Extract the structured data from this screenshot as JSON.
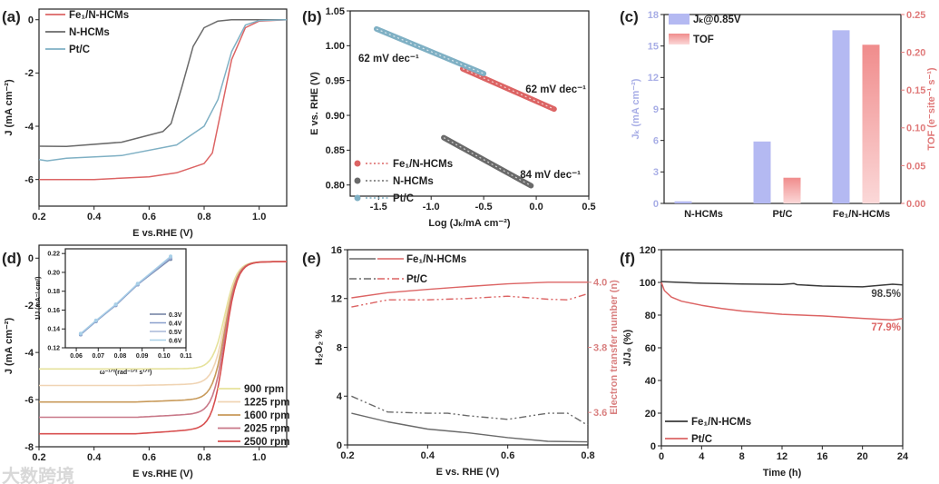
{
  "colors": {
    "fe": "#dc6464",
    "nhcm": "#6a6a6a",
    "ptc": "#7fb0c4",
    "jk": "#b4b9f2",
    "tof": "#f08c8c",
    "right_axis_e": "#d98080",
    "axis": "#222222"
  },
  "watermark": "大数跨境",
  "chart_data": [
    {
      "id": "a",
      "type": "line",
      "panel_label": "(a)",
      "xlabel": "E vs.RHE (V)",
      "ylabel": "J (mA cm⁻²)",
      "xlim": [
        0.2,
        1.1
      ],
      "ylim": [
        -7,
        0.4
      ],
      "xticks": [
        0.2,
        0.4,
        0.6,
        0.8,
        1.0
      ],
      "xtick_labels": [
        "0.2",
        "0.4",
        "0.6",
        "0.8",
        "1.0"
      ],
      "yticks": [
        0,
        -2,
        -4,
        -6
      ],
      "ytick_labels": [
        "0",
        "-2",
        "-4",
        "-6"
      ],
      "series": [
        {
          "name": "Fe₁/N-HCMs",
          "color": "#dc6464",
          "points": [
            [
              0.2,
              -6.0
            ],
            [
              0.4,
              -6.0
            ],
            [
              0.6,
              -5.9
            ],
            [
              0.7,
              -5.75
            ],
            [
              0.8,
              -5.4
            ],
            [
              0.83,
              -5.0
            ],
            [
              0.86,
              -3.5
            ],
            [
              0.9,
              -1.5
            ],
            [
              0.95,
              -0.3
            ],
            [
              1.0,
              -0.05
            ],
            [
              1.1,
              0
            ]
          ]
        },
        {
          "name": "N-HCMs",
          "color": "#6a6a6a",
          "points": [
            [
              0.2,
              -4.75
            ],
            [
              0.3,
              -4.76
            ],
            [
              0.5,
              -4.6
            ],
            [
              0.65,
              -4.2
            ],
            [
              0.68,
              -3.9
            ],
            [
              0.72,
              -2.5
            ],
            [
              0.76,
              -1.0
            ],
            [
              0.8,
              -0.3
            ],
            [
              0.85,
              -0.05
            ],
            [
              0.9,
              0
            ],
            [
              1.1,
              0
            ]
          ]
        },
        {
          "name": "Pt/C",
          "color": "#7fb0c4",
          "points": [
            [
              0.2,
              -5.25
            ],
            [
              0.23,
              -5.3
            ],
            [
              0.3,
              -5.2
            ],
            [
              0.5,
              -5.1
            ],
            [
              0.7,
              -4.7
            ],
            [
              0.8,
              -4.0
            ],
            [
              0.85,
              -3.0
            ],
            [
              0.9,
              -1.2
            ],
            [
              0.95,
              -0.2
            ],
            [
              1.0,
              -0.03
            ],
            [
              1.1,
              0
            ]
          ]
        }
      ]
    },
    {
      "id": "b",
      "type": "scatter",
      "panel_label": "(b)",
      "xlabel": "Log (Jₖ/mA cm⁻²)",
      "ylabel": "E vs. RHE (V)",
      "xlim": [
        -1.77,
        0.5
      ],
      "ylim": [
        0.784,
        1.05
      ],
      "xticks": [
        -1.5,
        -1.0,
        -0.5,
        0.0,
        0.5
      ],
      "xtick_labels": [
        "-1.5",
        "-1.0",
        "-0.5",
        "0.0",
        "0.5"
      ],
      "yticks": [
        0.8,
        0.85,
        0.9,
        0.95,
        1.0,
        1.05
      ],
      "ytick_labels": [
        "0.80",
        "0.85",
        "0.90",
        "0.95",
        "1.00",
        "1.05"
      ],
      "series": [
        {
          "name": "Fe₁/N-HCMs",
          "color": "#dc6464",
          "points": [
            [
              -0.7,
              0.967
            ],
            [
              0.17,
              0.909
            ]
          ]
        },
        {
          "name": "N-HCMs",
          "color": "#6a6a6a",
          "points": [
            [
              -0.88,
              0.868
            ],
            [
              -0.05,
              0.799
            ]
          ]
        },
        {
          "name": "Pt/C",
          "color": "#7fb0c4",
          "points": [
            [
              -1.52,
              1.024
            ],
            [
              -0.5,
              0.96
            ]
          ]
        }
      ],
      "annotations": [
        "62 mV dec⁻¹",
        "62 mV dec⁻¹",
        "84 mV dec⁻¹"
      ]
    },
    {
      "id": "c",
      "type": "bar",
      "panel_label": "(c)",
      "categories": [
        "N-HCMs",
        "Pt/C",
        "Fe₁/N-HCMs"
      ],
      "ylabel": "Jₖ (mA cm⁻²)",
      "y2label": "TOF (e⁻site⁻¹ s⁻¹)",
      "ylim": [
        0,
        18
      ],
      "y2lim": [
        0,
        0.25
      ],
      "yticks": [
        0,
        3,
        6,
        9,
        12,
        15,
        18
      ],
      "ytick_labels": [
        "0",
        "3",
        "6",
        "9",
        "12",
        "15",
        "18"
      ],
      "y2ticks": [
        0,
        0.05,
        0.1,
        0.15,
        0.2,
        0.25
      ],
      "y2tick_labels": [
        "0.00",
        "0.05",
        "0.10",
        "0.15",
        "0.20",
        "0.25"
      ],
      "series": [
        {
          "name": "Jₖ@0.85V",
          "color": "#b4b9f2",
          "axis": "y",
          "values": [
            0.2,
            5.9,
            16.5
          ]
        },
        {
          "name": "TOF",
          "color": "#f08c8c",
          "axis": "y2",
          "values": [
            0,
            0.034,
            0.21
          ]
        }
      ]
    },
    {
      "id": "d",
      "type": "line",
      "panel_label": "(d)",
      "xlabel": "E vs.RHE (V)",
      "ylabel": "J (mA cm⁻²)",
      "xlim": [
        0.2,
        1.1
      ],
      "ylim": [
        -8,
        0.55
      ],
      "xticks": [
        0.2,
        0.4,
        0.6,
        0.8,
        1.0
      ],
      "xtick_labels": [
        "0.2",
        "0.4",
        "0.6",
        "0.8",
        "1.0"
      ],
      "yticks": [
        0,
        -2,
        -4,
        -6,
        -8
      ],
      "ytick_labels": [
        "0",
        "-2",
        "-4",
        "-6",
        "-8"
      ],
      "series": [
        {
          "name": "900 rpm",
          "color": "#e6e29c",
          "limit": -4.7
        },
        {
          "name": "1225 rpm",
          "color": "#f0d4b4",
          "limit": -5.4
        },
        {
          "name": "1600 rpm",
          "color": "#c89a5a",
          "limit": -6.1
        },
        {
          "name": "2025 rpm",
          "color": "#c87888",
          "limit": -6.75
        },
        {
          "name": "2500 rpm",
          "color": "#d85050",
          "limit": -7.45
        }
      ],
      "inset": {
        "xlabel": "ω⁻¹ᐟ²(rad⁻¹ᐟ² s¹ᐟ²)",
        "ylabel": "1/J (mA⁻¹ cm²)",
        "xlim": [
          0.055,
          0.11
        ],
        "ylim": [
          0.12,
          0.225
        ],
        "xticks": [
          0.06,
          0.07,
          0.08,
          0.09,
          0.1,
          0.11
        ],
        "xtick_labels": [
          "0.06",
          "0.07",
          "0.08",
          "0.09",
          "0.10",
          "0.11"
        ],
        "yticks": [
          0.12,
          0.14,
          0.16,
          0.18,
          0.2,
          0.22
        ],
        "ytick_labels": [
          "0.12",
          "0.14",
          "0.16",
          "0.18",
          "0.20",
          "0.22"
        ],
        "series": [
          {
            "name": "0.3V",
            "color": "#6f7fa0",
            "points": [
              [
                0.062,
                0.134
              ],
              [
                0.069,
                0.148
              ],
              [
                0.078,
                0.165
              ],
              [
                0.088,
                0.187
              ],
              [
                0.103,
                0.214
              ]
            ]
          },
          {
            "name": "0.4V",
            "color": "#8aa0cc",
            "points": [
              [
                0.062,
                0.134
              ],
              [
                0.069,
                0.148
              ],
              [
                0.078,
                0.165
              ],
              [
                0.088,
                0.187
              ],
              [
                0.103,
                0.215
              ]
            ]
          },
          {
            "name": "0.5V",
            "color": "#a8b8d8",
            "points": [
              [
                0.062,
                0.135
              ],
              [
                0.069,
                0.149
              ],
              [
                0.078,
                0.166
              ],
              [
                0.088,
                0.188
              ],
              [
                0.103,
                0.216
              ]
            ]
          },
          {
            "name": "0.6V",
            "color": "#a8d0e8",
            "points": [
              [
                0.062,
                0.135
              ],
              [
                0.069,
                0.149
              ],
              [
                0.078,
                0.166
              ],
              [
                0.088,
                0.188
              ],
              [
                0.103,
                0.217
              ]
            ]
          }
        ]
      }
    },
    {
      "id": "e",
      "type": "line",
      "panel_label": "(e)",
      "xlabel": "E vs. RHE (V)",
      "ylabel": "H₂O₂ %",
      "y2label": "Electron transfer number (n)",
      "xlim": [
        0.2,
        0.8
      ],
      "ylim": [
        0,
        16
      ],
      "y2lim": [
        3.5,
        4.1
      ],
      "xticks": [
        0.2,
        0.4,
        0.6,
        0.8
      ],
      "xtick_labels": [
        "0.2",
        "0.4",
        "0.6",
        "0.8"
      ],
      "yticks": [
        0,
        4,
        8,
        12,
        16
      ],
      "ytick_labels": [
        "0",
        "4",
        "8",
        "12",
        "16"
      ],
      "y2ticks": [
        3.6,
        3.8,
        4.0
      ],
      "y2tick_labels": [
        "3.6",
        "3.8",
        "4.0"
      ],
      "legend": [
        "Fe₁/N-HCMs",
        "Pt/C"
      ],
      "series": [
        {
          "name": "Fe₁/N-HCMs H2O2",
          "color": "#6a6a6a",
          "axis": "y",
          "dash": "",
          "points": [
            [
              0.21,
              2.6
            ],
            [
              0.3,
              1.9
            ],
            [
              0.4,
              1.3
            ],
            [
              0.5,
              1.0
            ],
            [
              0.6,
              0.6
            ],
            [
              0.7,
              0.3
            ],
            [
              0.8,
              0.25
            ]
          ]
        },
        {
          "name": "Pt/C H2O2",
          "color": "#6a6a6a",
          "axis": "y",
          "dash": "8 3 2 3 2 3",
          "points": [
            [
              0.21,
              4.0
            ],
            [
              0.3,
              2.7
            ],
            [
              0.4,
              2.6
            ],
            [
              0.45,
              2.6
            ],
            [
              0.5,
              2.4
            ],
            [
              0.6,
              2.1
            ],
            [
              0.7,
              2.6
            ],
            [
              0.75,
              2.6
            ],
            [
              0.8,
              1.6
            ]
          ]
        },
        {
          "name": "Fe₁/N-HCMs n",
          "color": "#dc6464",
          "axis": "y2",
          "dash": "",
          "points": [
            [
              0.21,
              3.952
            ],
            [
              0.3,
              3.968
            ],
            [
              0.4,
              3.978
            ],
            [
              0.5,
              3.987
            ],
            [
              0.6,
              3.995
            ],
            [
              0.7,
              4.0
            ],
            [
              0.8,
              4.0
            ]
          ]
        },
        {
          "name": "Pt/C n",
          "color": "#dc6464",
          "axis": "y2",
          "dash": "8 3 2 3 2 3",
          "points": [
            [
              0.21,
              3.924
            ],
            [
              0.3,
              3.946
            ],
            [
              0.4,
              3.946
            ],
            [
              0.5,
              3.95
            ],
            [
              0.6,
              3.957
            ],
            [
              0.7,
              3.948
            ],
            [
              0.75,
              3.946
            ],
            [
              0.8,
              3.965
            ]
          ]
        }
      ]
    },
    {
      "id": "f",
      "type": "line",
      "panel_label": "(f)",
      "xlabel": "Time (h)",
      "ylabel": "J/J₀ (%)",
      "xlim": [
        0,
        24
      ],
      "ylim": [
        0,
        120
      ],
      "xticks": [
        0,
        4,
        8,
        12,
        16,
        20,
        24
      ],
      "xtick_labels": [
        "0",
        "4",
        "8",
        "12",
        "16",
        "20",
        "24"
      ],
      "yticks": [
        0,
        20,
        40,
        60,
        80,
        100,
        120
      ],
      "ytick_labels": [
        "0",
        "20",
        "40",
        "60",
        "80",
        "100",
        "120"
      ],
      "series": [
        {
          "name": "Fe₁/N-HCMs",
          "color": "#3a3a3a",
          "points": [
            [
              0,
              100.5
            ],
            [
              4,
              99.5
            ],
            [
              8,
              99
            ],
            [
              12,
              98.8
            ],
            [
              13.2,
              99.3
            ],
            [
              13.5,
              98.6
            ],
            [
              16,
              97.8
            ],
            [
              20,
              97.3
            ],
            [
              23,
              98.9
            ],
            [
              24,
              98.5
            ]
          ]
        },
        {
          "name": "Pt/C",
          "color": "#dc6464",
          "points": [
            [
              0,
              100
            ],
            [
              0.3,
              95
            ],
            [
              1,
              91
            ],
            [
              2,
              88.5
            ],
            [
              4,
              86
            ],
            [
              6,
              84
            ],
            [
              8,
              82.5
            ],
            [
              12,
              80.5
            ],
            [
              16,
              79.5
            ],
            [
              20,
              78
            ],
            [
              23,
              77
            ],
            [
              24,
              77.9
            ]
          ]
        }
      ],
      "annotations": [
        "98.5%",
        "77.9%"
      ]
    }
  ]
}
